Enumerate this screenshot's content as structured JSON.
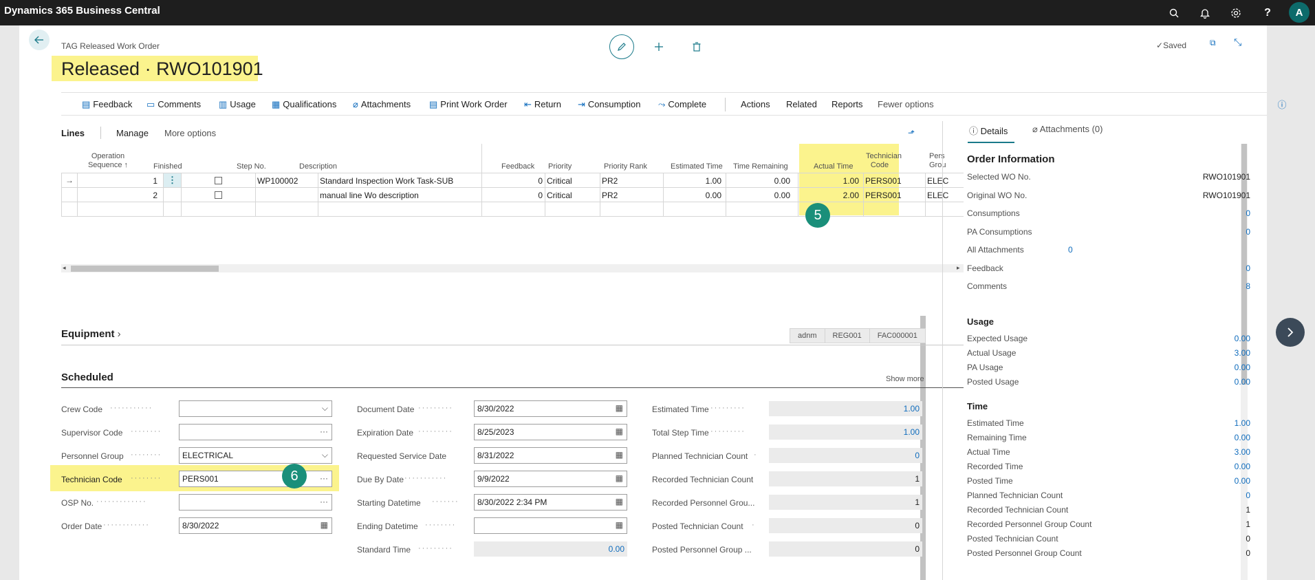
{
  "app": {
    "title": "Dynamics 365 Business Central",
    "avatar_letter": "A"
  },
  "topbar_icons": [
    "search-icon",
    "bell-icon",
    "gear-icon",
    "help-icon"
  ],
  "page": {
    "breadcrumb": "TAG Released Work Order",
    "title": "Released · RWO101901",
    "saved_label": "Saved"
  },
  "actions": [
    {
      "label": "Feedback",
      "icon": "feedback-icon"
    },
    {
      "label": "Comments",
      "icon": "comments-icon"
    },
    {
      "label": "Usage",
      "icon": "usage-icon"
    },
    {
      "label": "Qualifications",
      "icon": "qualifications-icon"
    },
    {
      "label": "Attachments",
      "icon": "attachments-icon"
    },
    {
      "label": "Print Work Order",
      "icon": "print-icon"
    },
    {
      "label": "Return",
      "icon": "return-icon"
    },
    {
      "label": "Consumption",
      "icon": "consumption-icon"
    },
    {
      "label": "Complete",
      "icon": "complete-icon"
    },
    {
      "label": "Actions"
    },
    {
      "label": "Related"
    },
    {
      "label": "Reports"
    },
    {
      "label": "Fewer options"
    }
  ],
  "lines": {
    "title": "Lines",
    "manage": "Manage",
    "more_options": "More options",
    "columns": {
      "op_seq": "Operation Sequence ↑",
      "finished": "Finished",
      "step_no": "Step No.",
      "description": "Description",
      "feedback": "Feedback",
      "priority": "Priority",
      "priority_rank": "Priority Rank",
      "estimated_time": "Estimated Time",
      "time_remaining": "Time Remaining",
      "actual_time": "Actual Time",
      "technician_code": "Technician Code",
      "pers_grp": "Pers Grou"
    },
    "rows": [
      {
        "seq": "1",
        "step": "WP100002",
        "desc": "Standard Inspection Work Task-SUB",
        "feedback": "0",
        "priority": "Critical",
        "rank": "PR2",
        "est": "1.00",
        "remain": "0.00",
        "actual": "1.00",
        "tech": "PERS001",
        "grp": "ELEC"
      },
      {
        "seq": "2",
        "step": "",
        "desc": "manual line Wo description",
        "feedback": "0",
        "priority": "Critical",
        "rank": "PR2",
        "est": "0.00",
        "remain": "0.00",
        "actual": "2.00",
        "tech": "PERS001",
        "grp": "ELEC"
      }
    ],
    "badge": "5"
  },
  "equipment": {
    "title": "Equipment",
    "tags": [
      "adnm",
      "REG001",
      "FAC000001"
    ]
  },
  "scheduled": {
    "title": "Scheduled",
    "show_more": "Show more",
    "col1": [
      {
        "label": "Crew Code",
        "value": "",
        "icon": "chevron-down"
      },
      {
        "label": "Supervisor Code",
        "value": "",
        "icon": "ellipsis"
      },
      {
        "label": "Personnel Group",
        "value": "ELECTRICAL",
        "icon": "chevron-down"
      },
      {
        "label": "Technician Code",
        "value": "PERS001",
        "icon": "ellipsis"
      },
      {
        "label": "OSP No.",
        "value": "",
        "icon": "ellipsis"
      },
      {
        "label": "Order Date",
        "value": "8/30/2022",
        "icon": "calendar"
      }
    ],
    "col2": [
      {
        "label": "Document Date",
        "value": "8/30/2022"
      },
      {
        "label": "Expiration Date",
        "value": "8/25/2023"
      },
      {
        "label": "Requested Service Date",
        "value": "8/31/2022"
      },
      {
        "label": "Due By Date",
        "value": "9/9/2022"
      },
      {
        "label": "Starting Datetime",
        "value": "8/30/2022 2:34 PM"
      },
      {
        "label": "Ending Datetime",
        "value": ""
      },
      {
        "label": "Standard Time",
        "value": "0.00"
      }
    ],
    "col3": [
      {
        "label": "Estimated Time",
        "value": "1.00"
      },
      {
        "label": "Total Step Time",
        "value": "1.00"
      },
      {
        "label": "Planned Technician Count",
        "value": "0"
      },
      {
        "label": "Recorded Technician Count",
        "value": "1"
      },
      {
        "label": "Recorded Personnel Grou...",
        "value": "1"
      },
      {
        "label": "Posted Technician Count",
        "value": "0"
      },
      {
        "label": "Posted Personnel Group ...",
        "value": "0"
      }
    ],
    "badge": "6"
  },
  "factbox": {
    "tab_details": "Details",
    "tab_attachments": "Attachments (0)",
    "order_info_title": "Order Information",
    "order_info": [
      {
        "label": "Selected WO No.",
        "value": "RWO101901"
      },
      {
        "label": "Original WO No.",
        "value": "RWO101901"
      },
      {
        "label": "Consumptions",
        "value": "0"
      },
      {
        "label": "PA Consumptions",
        "value": "0"
      },
      {
        "label": "All Attachments",
        "value": "0"
      },
      {
        "label": "Feedback",
        "value": "0"
      },
      {
        "label": "Comments",
        "value": "8"
      }
    ],
    "usage_title": "Usage",
    "usage": [
      {
        "label": "Expected Usage",
        "value": "0.00"
      },
      {
        "label": "Actual Usage",
        "value": "3.00"
      },
      {
        "label": "PA Usage",
        "value": "0.00"
      },
      {
        "label": "Posted Usage",
        "value": "0.00"
      }
    ],
    "time_title": "Time",
    "time": [
      {
        "label": "Estimated Time",
        "value": "1.00"
      },
      {
        "label": "Remaining Time",
        "value": "0.00"
      },
      {
        "label": "Actual Time",
        "value": "3.00"
      },
      {
        "label": "Recorded Time",
        "value": "0.00"
      },
      {
        "label": "Posted Time",
        "value": "0.00"
      },
      {
        "label": "Planned Technician Count",
        "value": "0"
      },
      {
        "label": "Recorded Technician Count",
        "value": "1"
      },
      {
        "label": "Recorded Personnel Group Count",
        "value": "1"
      },
      {
        "label": "Posted Technician Count",
        "value": "0"
      },
      {
        "label": "Posted Personnel Group Count",
        "value": "0"
      }
    ]
  }
}
